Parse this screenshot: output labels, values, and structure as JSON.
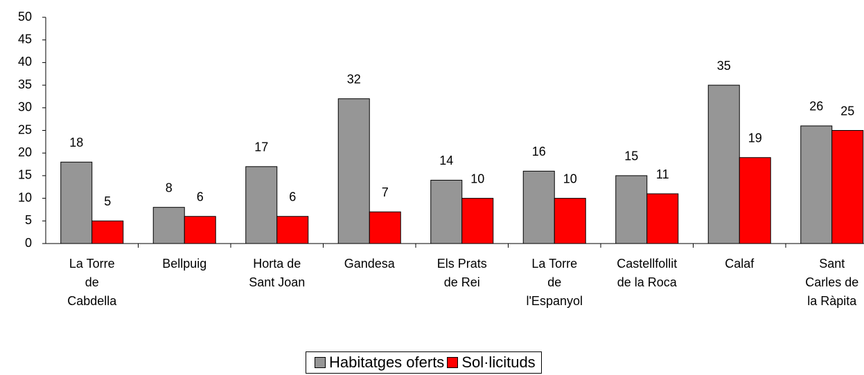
{
  "chart_data": {
    "type": "bar",
    "categories": [
      "La Torre\nde\nCabdella",
      "Bellpuig",
      "Horta de\nSant Joan",
      "Gandesa",
      "Els Prats\nde Rei",
      "La Torre\nde\nl'Espanyol",
      "Castellfollit\nde la Roca",
      "Calaf",
      "Sant\nCarles de\nla Ràpita"
    ],
    "series": [
      {
        "name": "Habitatges oferts",
        "color": "#969696",
        "values": [
          18,
          8,
          17,
          32,
          14,
          16,
          15,
          35,
          26
        ]
      },
      {
        "name": "Sol·licituds",
        "color": "#ff0000",
        "values": [
          5,
          6,
          6,
          7,
          10,
          10,
          11,
          19,
          25
        ]
      }
    ],
    "ylim": [
      0,
      50
    ],
    "yticks": [
      0,
      5,
      10,
      15,
      20,
      25,
      30,
      35,
      40,
      45,
      50
    ],
    "legend": "bottom"
  }
}
